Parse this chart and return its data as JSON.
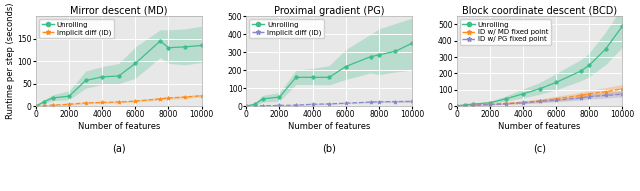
{
  "x": [
    0,
    500,
    1000,
    2000,
    3000,
    4000,
    5000,
    6000,
    7500,
    8000,
    9000,
    10000
  ],
  "titles": [
    "Mirror descent (MD)",
    "Proximal gradient (PG)",
    "Block coordinate descent (BCD)"
  ],
  "xlabel": "Number of features",
  "ylabel": "Runtime per step (seconds)",
  "green": "#3dbf8a",
  "orange": "#ff8c1a",
  "purple": "#8888cc",
  "fill_alpha": 0.28,
  "md_unroll_mean": [
    0,
    10,
    18,
    22,
    57,
    65,
    67,
    95,
    145,
    130,
    132,
    135
  ],
  "md_unroll_lo": [
    0,
    6,
    12,
    14,
    40,
    48,
    50,
    62,
    108,
    95,
    92,
    97
  ],
  "md_unroll_hi": [
    0,
    14,
    25,
    34,
    78,
    88,
    95,
    132,
    170,
    170,
    172,
    178
  ],
  "md_id_mean": [
    0,
    1,
    2,
    4,
    7,
    8,
    9,
    11,
    16,
    18,
    20,
    23
  ],
  "md_id_lo": [
    0,
    0,
    1,
    2,
    5,
    6,
    7,
    9,
    13,
    15,
    17,
    20
  ],
  "md_id_hi": [
    0,
    2,
    3,
    5,
    9,
    10,
    11,
    13,
    19,
    21,
    23,
    26
  ],
  "md_ylim": [
    0,
    200
  ],
  "md_yticks": [
    0,
    50,
    100,
    150
  ],
  "pg_unroll_mean": [
    0,
    10,
    40,
    50,
    160,
    160,
    160,
    220,
    275,
    285,
    305,
    350
  ],
  "pg_unroll_lo": [
    0,
    5,
    22,
    28,
    120,
    120,
    118,
    148,
    185,
    175,
    190,
    200
  ],
  "pg_unroll_hi": [
    0,
    18,
    60,
    75,
    200,
    210,
    225,
    315,
    400,
    430,
    460,
    490
  ],
  "pg_id_mean": [
    0,
    1,
    2,
    3,
    5,
    10,
    12,
    16,
    22,
    24,
    25,
    26
  ],
  "pg_id_lo": [
    0,
    0,
    0,
    1,
    3,
    7,
    9,
    13,
    18,
    19,
    20,
    20
  ],
  "pg_id_hi": [
    0,
    3,
    4,
    6,
    8,
    13,
    16,
    20,
    27,
    29,
    31,
    32
  ],
  "pg_ylim": [
    0,
    500
  ],
  "pg_yticks": [
    0,
    100,
    200,
    300,
    400,
    500
  ],
  "bcd_unroll_mean": [
    0,
    8,
    12,
    20,
    45,
    75,
    105,
    145,
    215,
    250,
    350,
    490
  ],
  "bcd_unroll_lo": [
    0,
    5,
    8,
    13,
    30,
    50,
    72,
    100,
    155,
    180,
    255,
    360
  ],
  "bcd_unroll_hi": [
    0,
    12,
    17,
    29,
    63,
    105,
    143,
    200,
    285,
    325,
    455,
    610
  ],
  "bcd_id_md_mean": [
    0,
    3,
    5,
    10,
    16,
    23,
    32,
    45,
    65,
    75,
    88,
    105
  ],
  "bcd_id_md_lo": [
    0,
    2,
    3,
    7,
    11,
    16,
    22,
    31,
    47,
    54,
    65,
    78
  ],
  "bcd_id_md_hi": [
    0,
    5,
    7,
    14,
    22,
    31,
    43,
    60,
    84,
    97,
    113,
    133
  ],
  "bcd_id_pg_mean": [
    0,
    3,
    5,
    9,
    14,
    20,
    28,
    36,
    50,
    58,
    65,
    72
  ],
  "bcd_id_pg_lo": [
    0,
    2,
    3,
    6,
    10,
    14,
    20,
    26,
    37,
    43,
    49,
    55
  ],
  "bcd_id_pg_hi": [
    0,
    5,
    8,
    13,
    20,
    28,
    38,
    48,
    65,
    75,
    83,
    92
  ],
  "bcd_ylim": [
    0,
    550
  ],
  "bcd_yticks": [
    0,
    100,
    200,
    300,
    400,
    500
  ],
  "bg_color": "#e8e8e8",
  "grid_color": "#ffffff",
  "fig_bg": "#ffffff"
}
